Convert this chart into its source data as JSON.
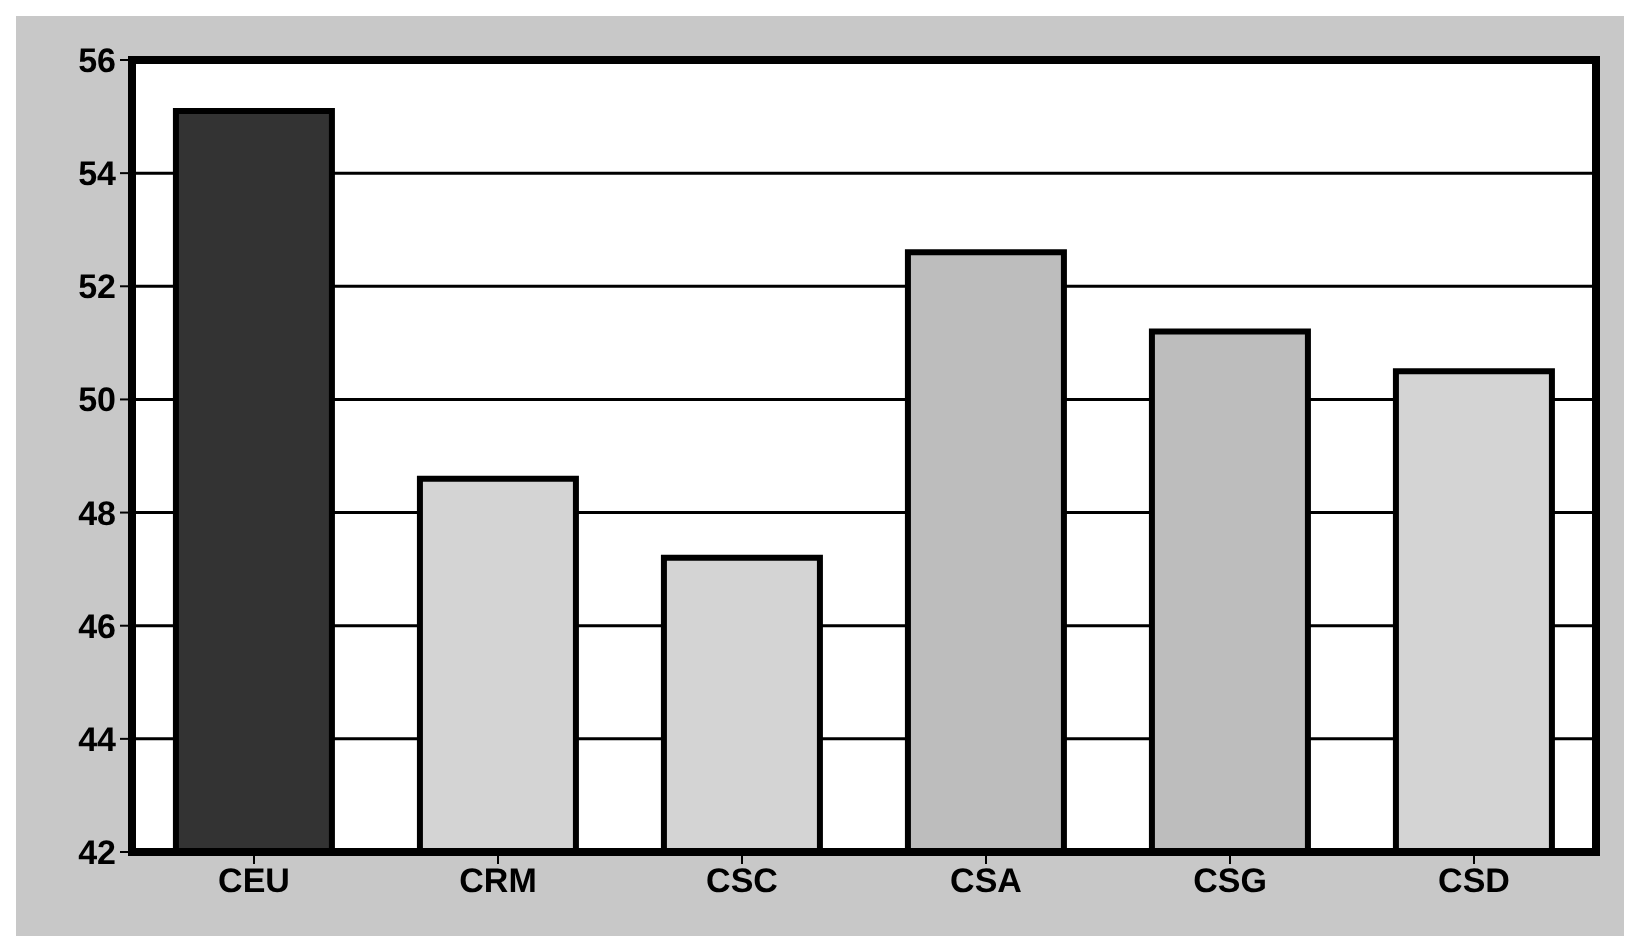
{
  "chart_data": {
    "type": "bar",
    "categories": [
      "CEU",
      "CRM",
      "CSC",
      "CSA",
      "CSG",
      "CSD"
    ],
    "values": [
      55.1,
      48.6,
      47.2,
      52.6,
      51.2,
      50.5
    ],
    "colors": [
      "#333333",
      "#d4d4d4",
      "#d4d4d4",
      "#bdbdbd",
      "#bdbdbd",
      "#d4d4d4"
    ],
    "ylim": [
      42,
      56
    ],
    "yticks": [
      42,
      44,
      46,
      48,
      50,
      52,
      54,
      56
    ],
    "grid": "y",
    "legend": false
  }
}
